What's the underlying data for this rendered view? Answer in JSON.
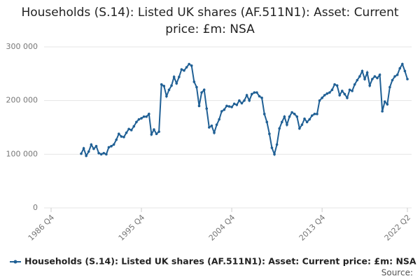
{
  "chart_data": {
    "type": "line",
    "title": "Households (S.14): Listed UK shares (AF.511N1): Asset: Current price: £m: NSA",
    "source": "Source:",
    "categories": [
      "1986 Q4",
      null,
      null,
      null,
      null,
      null,
      null,
      null,
      null,
      null,
      null,
      null,
      null,
      null,
      null,
      null,
      null,
      null,
      null,
      null,
      null,
      null,
      null,
      null,
      null,
      null,
      null,
      null,
      null,
      null,
      null,
      null,
      null,
      null,
      null,
      null,
      "1995 Q4",
      null,
      null,
      null,
      null,
      null,
      null,
      null,
      null,
      null,
      null,
      null,
      null,
      null,
      null,
      null,
      null,
      null,
      null,
      null,
      null,
      null,
      null,
      null,
      null,
      null,
      null,
      null,
      null,
      null,
      null,
      null,
      null,
      null,
      null,
      null,
      "2004 Q4",
      null,
      null,
      null,
      null,
      null,
      null,
      null,
      null,
      null,
      null,
      null,
      null,
      null,
      null,
      null,
      null,
      null,
      null,
      null,
      null,
      null,
      null,
      null,
      null,
      null,
      null,
      null,
      null,
      null,
      null,
      null,
      null,
      null,
      null,
      null,
      "2013 Q4",
      null,
      null,
      null,
      null,
      null,
      null,
      null,
      null,
      null,
      null,
      null,
      null,
      null,
      null,
      null,
      null,
      null,
      null,
      null,
      null,
      null,
      null,
      null,
      null,
      null,
      null,
      null,
      null,
      null,
      null,
      null,
      null,
      null,
      "2022 Q2"
    ],
    "series": [
      {
        "name": "Households (S.14): Listed UK shares (AF.511N1): Asset: Current price: £m: NSA",
        "color": "#206095",
        "values": [
          null,
          null,
          null,
          null,
          null,
          null,
          null,
          null,
          null,
          null,
          null,
          null,
          101000,
          111000,
          97000,
          105000,
          118000,
          110000,
          115000,
          102000,
          100000,
          102000,
          100000,
          113000,
          115000,
          118000,
          127000,
          138000,
          133000,
          132000,
          140000,
          147000,
          145000,
          152000,
          160000,
          165000,
          167000,
          170000,
          170000,
          175000,
          137000,
          146000,
          138000,
          142000,
          230000,
          227000,
          208000,
          220000,
          228000,
          244000,
          232000,
          244000,
          258000,
          256000,
          262000,
          268000,
          265000,
          235000,
          225000,
          190000,
          215000,
          220000,
          185000,
          150000,
          153000,
          140000,
          155000,
          165000,
          180000,
          183000,
          190000,
          189000,
          188000,
          194000,
          192000,
          200000,
          195000,
          200000,
          210000,
          200000,
          212000,
          215000,
          215000,
          208000,
          205000,
          175000,
          160000,
          138000,
          112000,
          100000,
          118000,
          148000,
          160000,
          170000,
          155000,
          170000,
          178000,
          175000,
          170000,
          148000,
          155000,
          166000,
          160000,
          165000,
          172000,
          175000,
          175000,
          200000,
          205000,
          210000,
          213000,
          215000,
          220000,
          230000,
          228000,
          210000,
          218000,
          212000,
          205000,
          220000,
          218000,
          230000,
          238000,
          245000,
          255000,
          240000,
          252000,
          228000,
          240000,
          245000,
          242000,
          248000,
          180000,
          198000,
          193000,
          225000,
          238000,
          245000,
          248000,
          260000,
          268000,
          255000,
          240000
        ]
      }
    ],
    "ylim": [
      0,
      300000
    ],
    "yticks": [
      0,
      {
        "value": 100000,
        "label": "100 000"
      },
      {
        "value": 200000,
        "label": "200 000"
      },
      {
        "value": 300000,
        "label": "300 000"
      }
    ],
    "grid": true
  }
}
